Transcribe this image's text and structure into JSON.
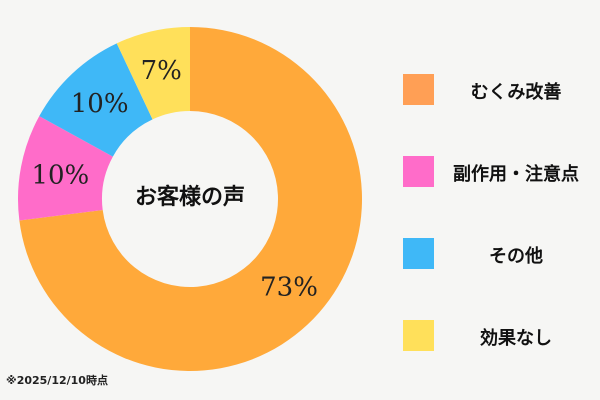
{
  "chart_data": {
    "type": "pie",
    "donut": true,
    "center_label": "お客様の声",
    "categories": [
      "むくみ改善",
      "副作用・注意点",
      "その他",
      "効果なし"
    ],
    "values": [
      73,
      10,
      10,
      7
    ],
    "value_labels": [
      "73%",
      "10%",
      "10%",
      "7%"
    ],
    "colors": [
      "#FFA93A",
      "#FF6CC9",
      "#3FB8F7",
      "#FFE05A"
    ],
    "legend_colors": [
      "#FF9F55",
      "#FF6CC9",
      "#3FB8F7",
      "#FFE05A"
    ],
    "start_angle_deg": 0,
    "direction": "clockwise",
    "legend_position": "right"
  },
  "footnote": "※2025/12/10時点"
}
